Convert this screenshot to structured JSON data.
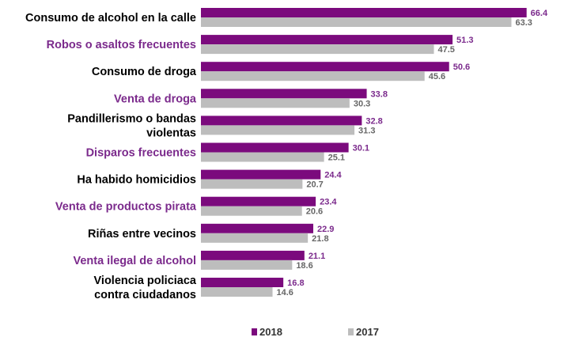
{
  "chart_data": {
    "type": "bar",
    "orientation": "horizontal",
    "categories": [
      "Consumo de alcohol en la calle",
      "Robos o asaltos frecuentes",
      "Consumo de droga",
      "Venta de droga",
      "Pandillerismo o bandas violentas",
      "Disparos frecuentes",
      "Ha habido homicidios",
      "Venta de productos pirata",
      "Riñas entre vecinos",
      "Venta ilegal de alcohol",
      "Violencia policiaca contra ciudadanos"
    ],
    "category_colors": [
      "#000000",
      "#7b2a8c",
      "#000000",
      "#7b2a8c",
      "#000000",
      "#7b2a8c",
      "#000000",
      "#7b2a8c",
      "#000000",
      "#7b2a8c",
      "#000000"
    ],
    "series": [
      {
        "name": "2018",
        "color": "#7b0a7d",
        "label_color": "#7b2a8c",
        "values": [
          66.4,
          51.3,
          50.6,
          33.8,
          32.8,
          30.1,
          24.4,
          23.4,
          22.9,
          21.1,
          16.8
        ]
      },
      {
        "name": "2017",
        "color": "#bdbdbd",
        "label_color": "#666666",
        "values": [
          63.3,
          47.5,
          45.6,
          30.3,
          31.3,
          25.1,
          20.7,
          20.6,
          21.8,
          18.6,
          14.6
        ]
      }
    ],
    "xlim": [
      0,
      70
    ],
    "grid": false,
    "legend": "bottom"
  }
}
